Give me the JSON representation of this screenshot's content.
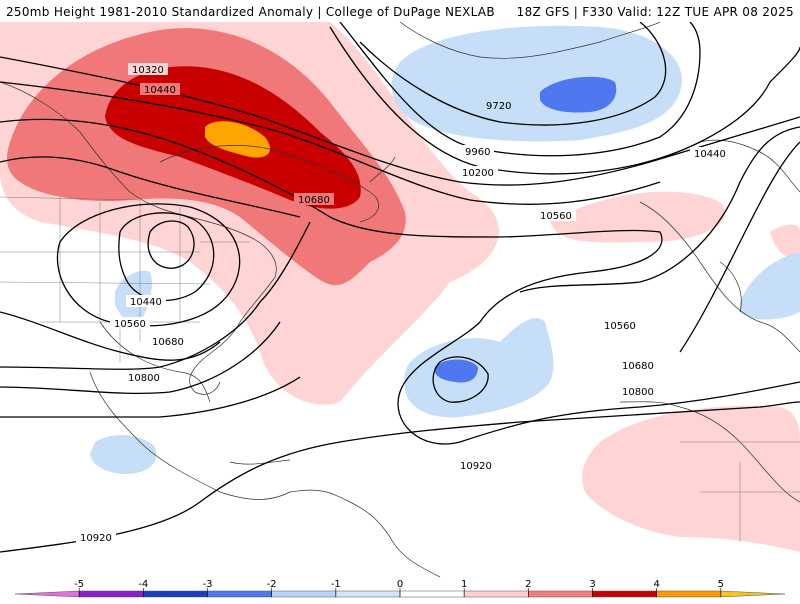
{
  "header": {
    "left": "250mb Height 1981-2010 Standardized Anomaly | College of DuPage NEXLAB",
    "right": "18Z GFS | F330 Valid: 12Z TUE APR 08 2025"
  },
  "map": {
    "contour_labels": [
      "10320",
      "10440",
      "9720",
      "9960",
      "10200",
      "10680",
      "10560",
      "10440",
      "10440",
      "10560",
      "10680",
      "10800",
      "10560",
      "10680",
      "10800",
      "10920",
      "10920"
    ]
  },
  "legend": {
    "ticks": [
      "-5",
      "-4",
      "-3",
      "-2",
      "-1",
      "0",
      "1",
      "2",
      "3",
      "4",
      "5"
    ],
    "colors": [
      "#e070e0",
      "#8a1ec8",
      "#1a3ec0",
      "#4f78f0",
      "#b8d4f8",
      "#d2e6fb",
      "#ffffff",
      "#ffd0d0",
      "#f08080",
      "#c80000",
      "#ff9900",
      "#f5c518"
    ]
  }
}
